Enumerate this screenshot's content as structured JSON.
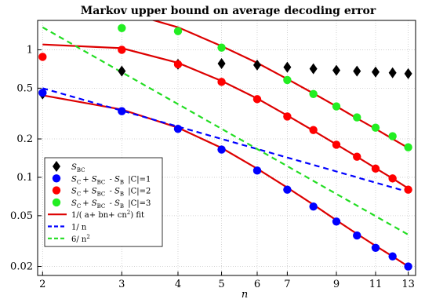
{
  "chart_data": {
    "type": "scatter",
    "title": "Markov upper bound on average decoding error",
    "xlabel": "n",
    "ylabel": "",
    "x_scale": "log",
    "y_scale": "log",
    "xlim": [
      1.95,
      13.5
    ],
    "ylim": [
      0.017,
      1.7
    ],
    "x_ticks": [
      2,
      3,
      4,
      5,
      6,
      7,
      9,
      11,
      13
    ],
    "y_ticks": [
      0.02,
      0.05,
      0.1,
      0.2,
      0.5,
      1
    ],
    "y_tick_labels": [
      "0.02",
      "0.05",
      "0.1",
      "0.2",
      "0.5",
      "1"
    ],
    "grid": true,
    "legend_position": "bottom-left",
    "series": [
      {
        "name": "S_BC",
        "legend_parts": [
          [
            "S",
            "BC"
          ]
        ],
        "kind": "markers",
        "marker": "diamond",
        "color": "#000000",
        "points": [
          [
            2,
            0.45
          ],
          [
            3,
            0.68
          ],
          [
            4,
            0.77
          ],
          [
            5,
            0.78
          ],
          [
            6,
            0.76
          ],
          [
            7,
            0.73
          ],
          [
            8,
            0.71
          ],
          [
            9,
            0.69
          ],
          [
            10,
            0.68
          ],
          [
            11,
            0.67
          ],
          [
            12,
            0.66
          ],
          [
            13,
            0.65
          ]
        ]
      },
      {
        "name": "S_C + S_BC - S_B |C|=1",
        "legend_parts": [
          [
            "S",
            "C"
          ],
          [
            "+ S",
            "BC"
          ],
          [
            " - S",
            "B"
          ]
        ],
        "legend_suffix": "|C|=1",
        "kind": "markers",
        "marker": "circle",
        "color": "#0000ff",
        "points": [
          [
            2,
            0.46
          ],
          [
            3,
            0.33
          ],
          [
            4,
            0.24
          ],
          [
            5,
            0.165
          ],
          [
            6,
            0.113
          ],
          [
            7,
            0.08
          ],
          [
            8,
            0.059
          ],
          [
            9,
            0.045
          ],
          [
            10,
            0.035
          ],
          [
            11,
            0.028
          ],
          [
            12,
            0.024
          ],
          [
            13,
            0.02
          ]
        ]
      },
      {
        "name": "S_C + S_BC - S_B |C|=2",
        "legend_parts": [
          [
            "S",
            "C"
          ],
          [
            "+ S",
            "BC"
          ],
          [
            " - S",
            "B"
          ]
        ],
        "legend_suffix": "|C|=2",
        "kind": "markers",
        "marker": "circle",
        "color": "#ff0000",
        "points": [
          [
            2,
            0.88
          ],
          [
            3,
            1.0
          ],
          [
            4,
            0.77
          ],
          [
            5,
            0.56
          ],
          [
            6,
            0.41
          ],
          [
            7,
            0.3
          ],
          [
            8,
            0.235
          ],
          [
            9,
            0.18
          ],
          [
            10,
            0.145
          ],
          [
            11,
            0.117
          ],
          [
            12,
            0.098
          ],
          [
            13,
            0.08
          ]
        ]
      },
      {
        "name": "S_C + S_BC - S_B |C|=3",
        "legend_parts": [
          [
            "S",
            "C"
          ],
          [
            "+ S",
            "BC"
          ],
          [
            " - S",
            "B"
          ]
        ],
        "legend_suffix": "|C|=3",
        "kind": "markers",
        "marker": "circle",
        "color": "#22ee22",
        "points": [
          [
            3,
            1.48
          ],
          [
            4,
            1.4
          ],
          [
            5,
            1.04
          ],
          [
            7,
            0.58
          ],
          [
            8,
            0.45
          ],
          [
            9,
            0.36
          ],
          [
            10,
            0.295
          ],
          [
            11,
            0.245
          ],
          [
            12,
            0.21
          ],
          [
            13,
            0.172
          ]
        ]
      },
      {
        "name": "1/(a+bn+cn^2) fit",
        "legend_text": "1/( a+ bn+ cn",
        "legend_sup": "2",
        "legend_tail": ")  fit",
        "kind": "line",
        "style": "solid",
        "color": "#dd0000",
        "segments": [
          [
            [
              2,
              0.44
            ],
            [
              3,
              0.34
            ],
            [
              4,
              0.245
            ],
            [
              5,
              0.17
            ],
            [
              6,
              0.117
            ],
            [
              7,
              0.083
            ],
            [
              8,
              0.061
            ],
            [
              9,
              0.046
            ],
            [
              10,
              0.036
            ],
            [
              11,
              0.029
            ],
            [
              12,
              0.024
            ],
            [
              13,
              0.02
            ]
          ],
          [
            [
              2,
              1.1
            ],
            [
              3,
              1.03
            ],
            [
              4,
              0.79
            ],
            [
              5,
              0.57
            ],
            [
              6,
              0.415
            ],
            [
              7,
              0.305
            ],
            [
              8,
              0.232
            ],
            [
              9,
              0.181
            ],
            [
              10,
              0.145
            ],
            [
              11,
              0.118
            ],
            [
              12,
              0.098
            ],
            [
              13,
              0.082
            ]
          ],
          [
            [
              3.5,
              1.72
            ],
            [
              4,
              1.5
            ],
            [
              5,
              1.07
            ],
            [
              6,
              0.79
            ],
            [
              7,
              0.59
            ],
            [
              8,
              0.455
            ],
            [
              9,
              0.36
            ],
            [
              10,
              0.29
            ],
            [
              11,
              0.24
            ],
            [
              12,
              0.2
            ],
            [
              13,
              0.17
            ]
          ]
        ]
      },
      {
        "name": "1/n",
        "legend_text": "1/ n",
        "kind": "line",
        "style": "dashed",
        "color": "#0000ff",
        "function": "inverse_n",
        "domain": [
          2,
          13
        ]
      },
      {
        "name": "6/n^2",
        "legend_text": "6/ n",
        "legend_sup": "2",
        "kind": "line",
        "style": "dashed",
        "color": "#22dd22",
        "function": "six_over_n_squared",
        "domain": [
          2,
          13
        ]
      }
    ]
  }
}
